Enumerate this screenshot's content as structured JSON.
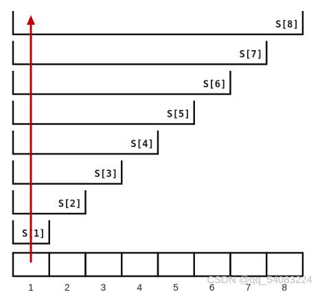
{
  "diagram": {
    "brackets": [
      {
        "label": "S[1]",
        "span": 1
      },
      {
        "label": "S[2]",
        "span": 2
      },
      {
        "label": "S[3]",
        "span": 3
      },
      {
        "label": "S[4]",
        "span": 4
      },
      {
        "label": "S[5]",
        "span": 5
      },
      {
        "label": "S[6]",
        "span": 6
      },
      {
        "label": "S[7]",
        "span": 7
      },
      {
        "label": "S[8]",
        "span": 8
      }
    ],
    "cells": [
      "1",
      "2",
      "3",
      "4",
      "5",
      "6",
      "7",
      "8"
    ],
    "arrow_color": "#c00000",
    "line_color": "#111111"
  },
  "watermark": "CSDN @qq_54083224"
}
